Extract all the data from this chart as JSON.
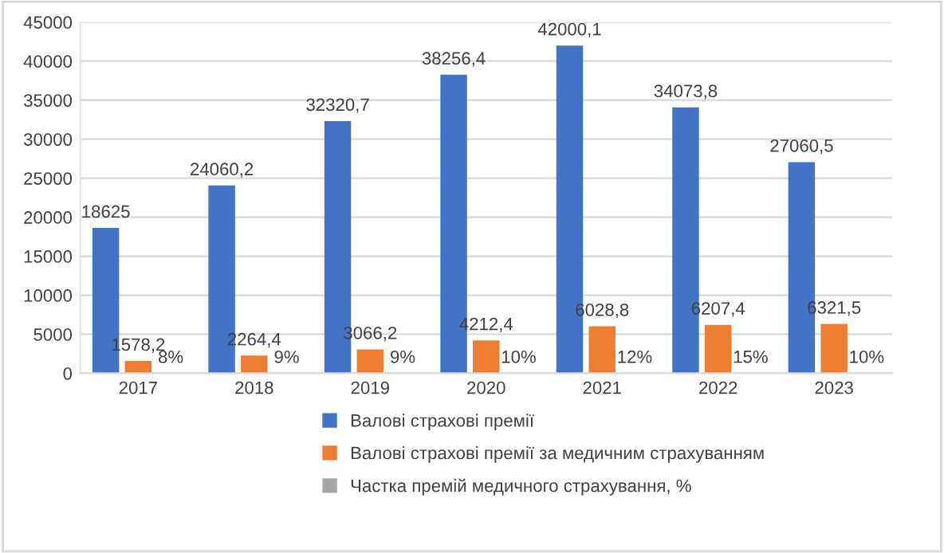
{
  "chart_data": {
    "type": "bar",
    "categories": [
      "2017",
      "2018",
      "2019",
      "2020",
      "2021",
      "2022",
      "2023"
    ],
    "series": [
      {
        "name": "Валові страхові премії",
        "color": "#4472c4",
        "values": [
          18625,
          24060.2,
          32320.7,
          38256.4,
          42000.1,
          34073.8,
          27060.5
        ],
        "value_labels": [
          "18625",
          "24060,2",
          "32320,7",
          "38256,4",
          "42000,1",
          "34073,8",
          "27060,5"
        ]
      },
      {
        "name": "Валові страхові премії за медичним страхуванням",
        "color": "#ed7d31",
        "values": [
          1578.2,
          2264.4,
          3066.2,
          4212.4,
          6028.8,
          6207.4,
          6321.5
        ],
        "value_labels": [
          "1578,2",
          "2264,4",
          "3066,2",
          "4212,4",
          "6028,8",
          "6207,4",
          "6321,5"
        ]
      },
      {
        "name": "Частка премій медичного страхування, %",
        "color": "#a5a5a5",
        "values": [
          8,
          9,
          9,
          10,
          12,
          15,
          10
        ],
        "value_labels": [
          "8%",
          "9%",
          "9%",
          "10%",
          "12%",
          "15%",
          "10%"
        ]
      }
    ],
    "ylim": [
      0,
      45000
    ],
    "yticks": [
      0,
      5000,
      10000,
      15000,
      20000,
      25000,
      30000,
      35000,
      40000,
      45000
    ],
    "grid": "y",
    "legend": "bottom"
  }
}
